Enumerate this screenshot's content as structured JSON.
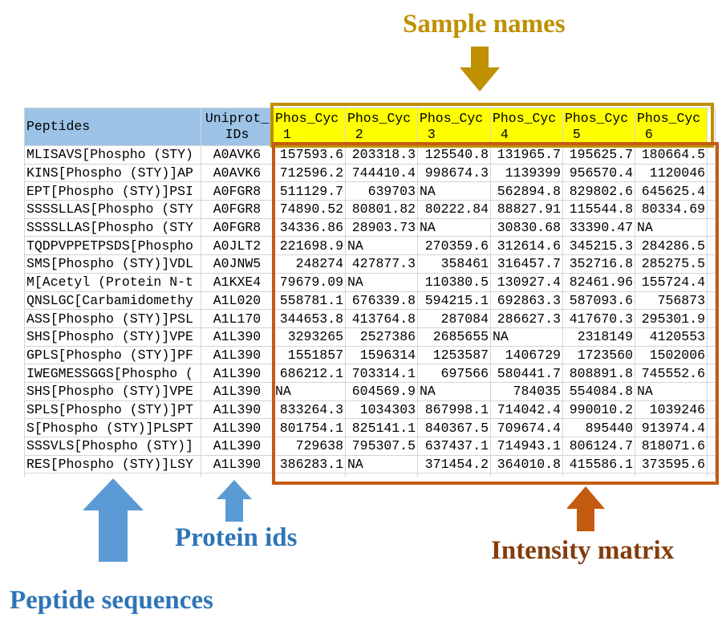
{
  "annotations": {
    "sample_names": "Sample names",
    "protein_ids": "Protein ids",
    "peptide_sequences": "Peptide sequences",
    "intensity_matrix": "Intensity matrix"
  },
  "colors": {
    "sample_accent": "#BF9000",
    "protein_accent": "#5B9BD5",
    "intensity_accent": "#C55A11",
    "header_blue": "#9DC3E6",
    "header_yellow": "#FFFF00"
  },
  "table": {
    "headers": {
      "peptides": "Peptides",
      "uniprot_line1": "Uniprot_",
      "uniprot_line2": "IDs",
      "samples": [
        {
          "line1": "Phos_Cyc",
          "line2": "1"
        },
        {
          "line1": "Phos_Cyc",
          "line2": "2"
        },
        {
          "line1": "Phos_Cyc",
          "line2": "3"
        },
        {
          "line1": "Phos_Cyc",
          "line2": "4"
        },
        {
          "line1": "Phos_Cyc",
          "line2": "5"
        },
        {
          "line1": "Phos_Cyc",
          "line2": "6"
        }
      ]
    },
    "rows": [
      {
        "peptide": "MLISAVS[Phospho (STY)",
        "id": "A0AVK6",
        "values": [
          "157593.6",
          "203318.3",
          "125540.8",
          "131965.7",
          "195625.7",
          "180664.5"
        ]
      },
      {
        "peptide": "KINS[Phospho (STY)]AP",
        "id": "A0AVK6",
        "values": [
          "712596.2",
          "744410.4",
          "998674.3",
          "1139399",
          "956570.4",
          "1120046"
        ]
      },
      {
        "peptide": "EPT[Phospho (STY)]PSI",
        "id": "A0FGR8",
        "values": [
          "511129.7",
          "639703",
          "NA",
          "562894.8",
          "829802.6",
          "645625.4"
        ]
      },
      {
        "peptide": "SSSSLLAS[Phospho (STY",
        "id": "A0FGR8",
        "values": [
          "74890.52",
          "80801.82",
          "80222.84",
          "88827.91",
          "115544.8",
          "80334.69"
        ]
      },
      {
        "peptide": "SSSSLLAS[Phospho (STY",
        "id": "A0FGR8",
        "values": [
          "34336.86",
          "28903.73",
          "NA",
          "30830.68",
          "33390.47",
          "NA"
        ]
      },
      {
        "peptide": "TQDPVPPETPSDS[Phospho",
        "id": "A0JLT2",
        "values": [
          "221698.9",
          "NA",
          "270359.6",
          "312614.6",
          "345215.3",
          "284286.5"
        ]
      },
      {
        "peptide": "SMS[Phospho (STY)]VDL",
        "id": "A0JNW5",
        "values": [
          "248274",
          "427877.3",
          "358461",
          "316457.7",
          "352716.8",
          "285275.5"
        ]
      },
      {
        "peptide": "M[Acetyl (Protein N-t",
        "id": "A1KXE4",
        "values": [
          "79679.09",
          "NA",
          "110380.5",
          "130927.4",
          "82461.96",
          "155724.4"
        ]
      },
      {
        "peptide": "QNSLGC[Carbamidomethy",
        "id": "A1L020",
        "values": [
          "558781.1",
          "676339.8",
          "594215.1",
          "692863.3",
          "587093.6",
          "756873"
        ]
      },
      {
        "peptide": "ASS[Phospho (STY)]PSL",
        "id": "A1L170",
        "values": [
          "344653.8",
          "413764.8",
          "287084",
          "286627.3",
          "417670.3",
          "295301.9"
        ]
      },
      {
        "peptide": "SHS[Phospho (STY)]VPE",
        "id": "A1L390",
        "values": [
          "3293265",
          "2527386",
          "2685655",
          "NA",
          "2318149",
          "4120553"
        ]
      },
      {
        "peptide": "GPLS[Phospho (STY)]PF",
        "id": "A1L390",
        "values": [
          "1551857",
          "1596314",
          "1253587",
          "1406729",
          "1723560",
          "1502006"
        ]
      },
      {
        "peptide": "IWEGMESSGGS[Phospho (",
        "id": "A1L390",
        "values": [
          "686212.1",
          "703314.1",
          "697566",
          "580441.7",
          "808891.8",
          "745552.6"
        ]
      },
      {
        "peptide": "SHS[Phospho (STY)]VPE",
        "id": "A1L390",
        "values": [
          "NA",
          "604569.9",
          "NA",
          "784035",
          "554084.8",
          "NA"
        ]
      },
      {
        "peptide": "SPLS[Phospho (STY)]PT",
        "id": "A1L390",
        "values": [
          "833264.3",
          "1034303",
          "867998.1",
          "714042.4",
          "990010.2",
          "1039246"
        ]
      },
      {
        "peptide": "S[Phospho (STY)]PLSPT",
        "id": "A1L390",
        "values": [
          "801754.1",
          "825141.1",
          "840367.5",
          "709674.4",
          "895440",
          "913974.4"
        ]
      },
      {
        "peptide": "SSSVLS[Phospho (STY)]",
        "id": "A1L390",
        "values": [
          "729638",
          "795307.5",
          "637437.1",
          "714943.1",
          "806124.7",
          "818071.6"
        ]
      },
      {
        "peptide": "RES[Phospho (STY)]LSY",
        "id": "A1L390",
        "values": [
          "386283.1",
          "NA",
          "371454.2",
          "364010.8",
          "415586.1",
          "373595.6"
        ]
      }
    ]
  }
}
